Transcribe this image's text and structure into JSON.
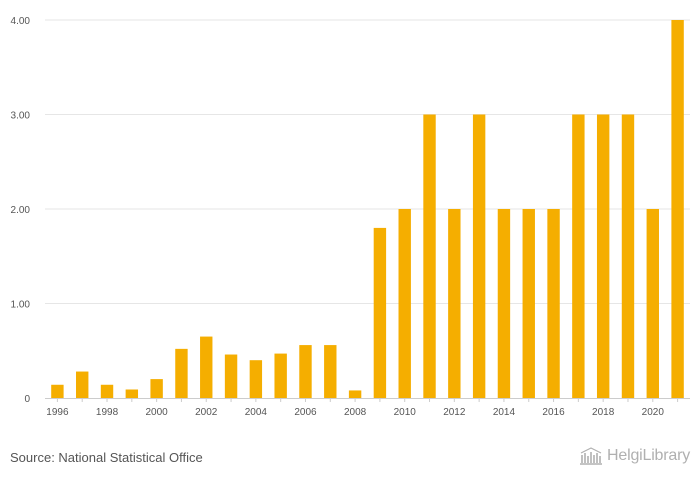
{
  "chart_data": {
    "type": "bar",
    "title": "",
    "xlabel": "",
    "ylabel": "",
    "ylim": [
      0,
      4
    ],
    "yticks": [
      0,
      1,
      2,
      3,
      4
    ],
    "ytick_labels": [
      "0",
      "1.00",
      "2.00",
      "3.00",
      "4.00"
    ],
    "categories": [
      "1996",
      "1997",
      "1998",
      "1999",
      "2000",
      "2001",
      "2002",
      "2003",
      "2004",
      "2005",
      "2006",
      "2007",
      "2008",
      "2009",
      "2010",
      "2011",
      "2012",
      "2013",
      "2014",
      "2015",
      "2016",
      "2017",
      "2018",
      "2019",
      "2020",
      "2021"
    ],
    "xtick_labels": [
      "1996",
      "1998",
      "2000",
      "2002",
      "2004",
      "2006",
      "2008",
      "2010",
      "2012",
      "2014",
      "2016",
      "2018",
      "2020"
    ],
    "values": [
      0.14,
      0.28,
      0.14,
      0.09,
      0.2,
      0.52,
      0.65,
      0.46,
      0.4,
      0.47,
      0.56,
      0.56,
      0.08,
      1.8,
      2.0,
      3.0,
      2.0,
      3.0,
      2.0,
      2.0,
      2.0,
      3.0,
      3.0,
      3.0,
      2.0,
      4.0
    ],
    "bar_color": "#F5AE00",
    "grid": true
  },
  "footer": {
    "source": "Source: National Statistical Office",
    "logo_text": "HelgiLibrary",
    "logo_icon": "library-building-icon"
  }
}
